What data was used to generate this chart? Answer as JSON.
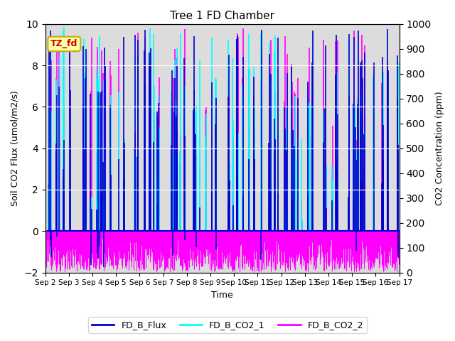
{
  "title": "Tree 1 FD Chamber",
  "xlabel": "Time",
  "ylabel_left": "Soil CO2 Flux (umol/m2/s)",
  "ylabel_right": "CO2 Concentration (ppm)",
  "ylim_left": [
    -2,
    10
  ],
  "ylim_right": [
    0,
    1000
  ],
  "yticks_left": [
    -2,
    0,
    2,
    4,
    6,
    8,
    10
  ],
  "yticks_right": [
    0,
    100,
    200,
    300,
    400,
    500,
    600,
    700,
    800,
    900,
    1000
  ],
  "tz_label": "TZ_fd",
  "legend_entries": [
    "FD_B_Flux",
    "FD_B_CO2_1",
    "FD_B_CO2_2"
  ],
  "colors": {
    "FD_B_Flux": "#0000CD",
    "FD_B_CO2_1": "#00FFFF",
    "FD_B_CO2_2": "#FF00FF"
  },
  "bg_color": "#DCDCDC",
  "tz_bg": "#FFFFAA",
  "tz_edge": "#CCAA00",
  "tz_text_color": "#CC0000",
  "seed": 42
}
